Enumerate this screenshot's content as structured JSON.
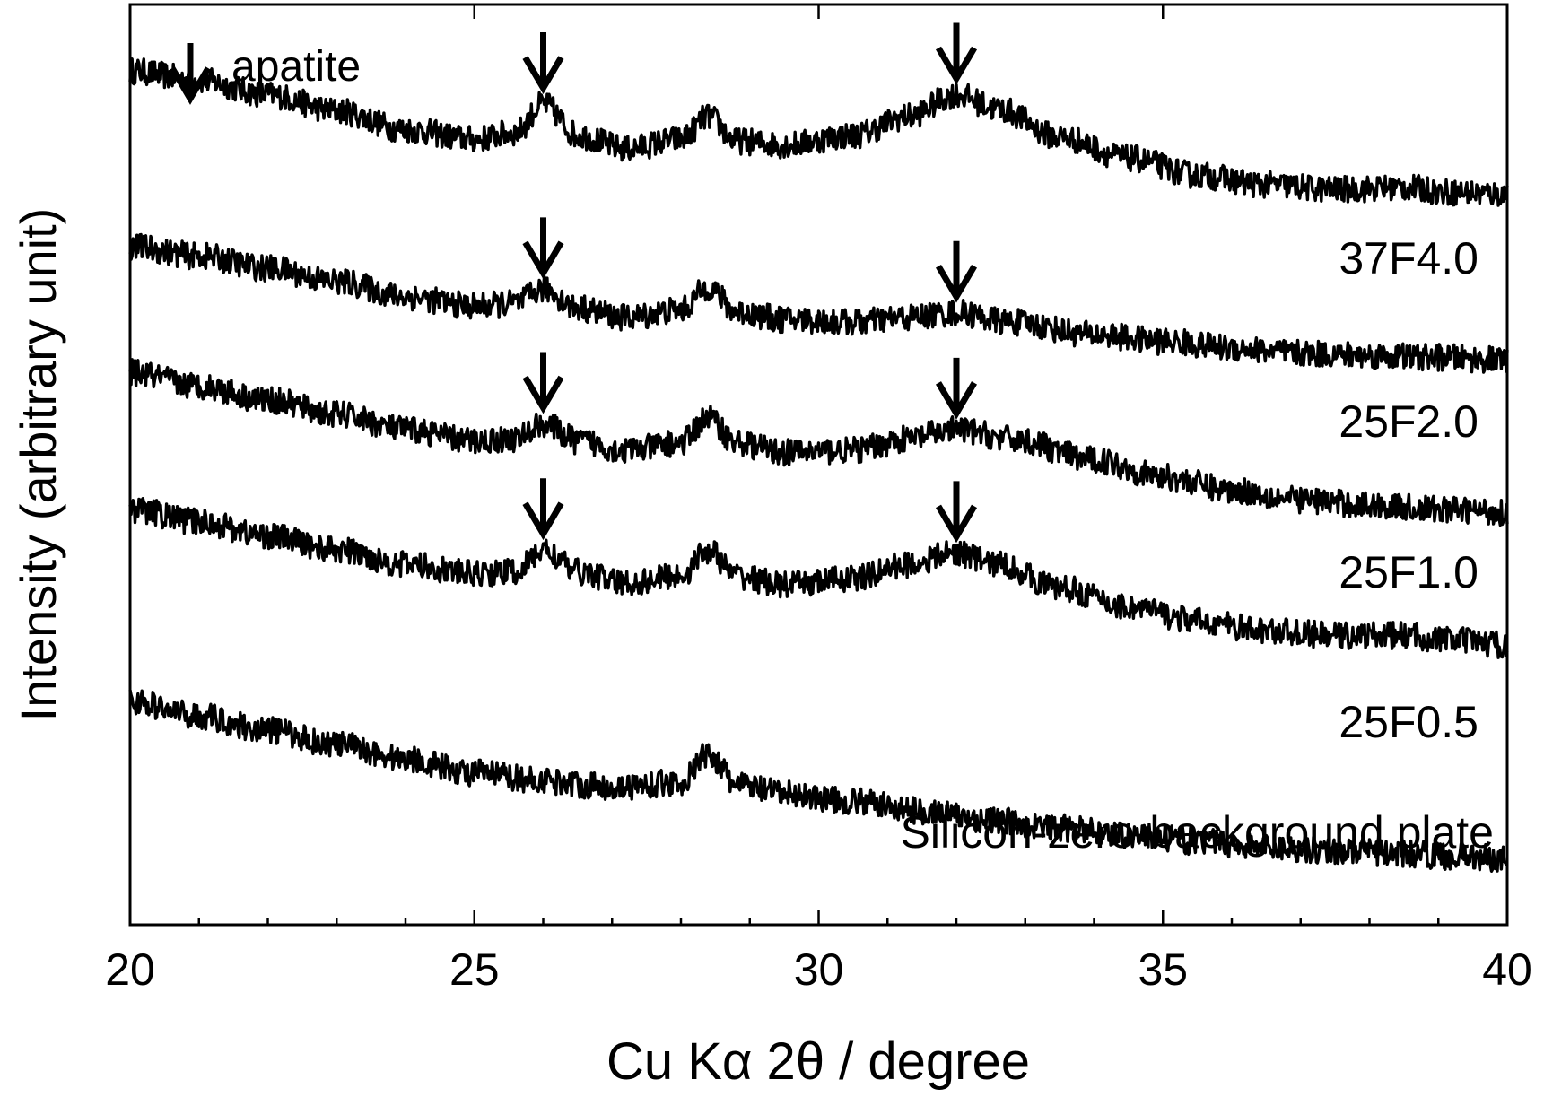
{
  "chart_data": {
    "type": "line",
    "xlabel": "Cu Kα 2θ / degree",
    "ylabel": "Intensity (arbitrary unit)",
    "xlim": [
      20,
      40
    ],
    "x_ticks": [
      20,
      25,
      30,
      35,
      40
    ],
    "y_ticks_shown": false,
    "grid": false,
    "legend": {
      "position": "top-left",
      "marker": "down-arrow",
      "label": "apatite"
    },
    "series": [
      {
        "name": "37F4.0",
        "points": [
          [
            20,
            8.4
          ],
          [
            21,
            8.3
          ],
          [
            22,
            8.15
          ],
          [
            23,
            7.98
          ],
          [
            24,
            7.78
          ],
          [
            25,
            7.68
          ],
          [
            25.6,
            7.75
          ],
          [
            26.0,
            8.05
          ],
          [
            26.5,
            7.72
          ],
          [
            27.2,
            7.58
          ],
          [
            28.0,
            7.68
          ],
          [
            28.4,
            7.92
          ],
          [
            28.8,
            7.66
          ],
          [
            29.5,
            7.62
          ],
          [
            30.5,
            7.72
          ],
          [
            31.3,
            7.92
          ],
          [
            32.0,
            8.15
          ],
          [
            32.6,
            8.0
          ],
          [
            33.5,
            7.7
          ],
          [
            34.5,
            7.48
          ],
          [
            35.5,
            7.3
          ],
          [
            36.5,
            7.2
          ],
          [
            37.5,
            7.15
          ],
          [
            38.5,
            7.17
          ],
          [
            39.2,
            7.12
          ],
          [
            40,
            7.1
          ]
        ]
      },
      {
        "name": "25F2.0",
        "points": [
          [
            20,
            6.55
          ],
          [
            21,
            6.45
          ],
          [
            22,
            6.32
          ],
          [
            23,
            6.18
          ],
          [
            24,
            6.02
          ],
          [
            25,
            5.92
          ],
          [
            25.6,
            5.95
          ],
          [
            26.0,
            6.1
          ],
          [
            26.5,
            5.9
          ],
          [
            27.2,
            5.8
          ],
          [
            28.0,
            5.88
          ],
          [
            28.4,
            6.12
          ],
          [
            28.8,
            5.86
          ],
          [
            29.5,
            5.78
          ],
          [
            30.5,
            5.75
          ],
          [
            31.3,
            5.8
          ],
          [
            32.0,
            5.85
          ],
          [
            32.8,
            5.75
          ],
          [
            34,
            5.62
          ],
          [
            35,
            5.55
          ],
          [
            36,
            5.48
          ],
          [
            37,
            5.42
          ],
          [
            38,
            5.4
          ],
          [
            39,
            5.38
          ],
          [
            40,
            5.35
          ]
        ]
      },
      {
        "name": "25F1.0",
        "points": [
          [
            20,
            5.22
          ],
          [
            21,
            5.08
          ],
          [
            22,
            4.93
          ],
          [
            23,
            4.78
          ],
          [
            24,
            4.62
          ],
          [
            25,
            4.5
          ],
          [
            25.6,
            4.52
          ],
          [
            26.0,
            4.68
          ],
          [
            26.5,
            4.5
          ],
          [
            27.2,
            4.4
          ],
          [
            28.0,
            4.48
          ],
          [
            28.4,
            4.75
          ],
          [
            28.8,
            4.48
          ],
          [
            29.5,
            4.38
          ],
          [
            30.5,
            4.4
          ],
          [
            31.3,
            4.52
          ],
          [
            32.0,
            4.62
          ],
          [
            32.8,
            4.52
          ],
          [
            34,
            4.3
          ],
          [
            35,
            4.12
          ],
          [
            36,
            3.98
          ],
          [
            37,
            3.88
          ],
          [
            38,
            3.82
          ],
          [
            39,
            3.78
          ],
          [
            40,
            3.75
          ]
        ]
      },
      {
        "name": "25F0.5",
        "points": [
          [
            20,
            3.78
          ],
          [
            21,
            3.65
          ],
          [
            22,
            3.5
          ],
          [
            23,
            3.35
          ],
          [
            24,
            3.2
          ],
          [
            25,
            3.1
          ],
          [
            25.6,
            3.12
          ],
          [
            26.0,
            3.35
          ],
          [
            26.5,
            3.12
          ],
          [
            27.2,
            3.0
          ],
          [
            28.0,
            3.08
          ],
          [
            28.4,
            3.35
          ],
          [
            28.8,
            3.08
          ],
          [
            29.5,
            2.98
          ],
          [
            30.5,
            3.05
          ],
          [
            31.3,
            3.2
          ],
          [
            32.0,
            3.32
          ],
          [
            32.6,
            3.2
          ],
          [
            33.5,
            2.95
          ],
          [
            34.5,
            2.75
          ],
          [
            35.5,
            2.6
          ],
          [
            36.5,
            2.5
          ],
          [
            37.5,
            2.45
          ],
          [
            38.5,
            2.45
          ],
          [
            39.2,
            2.4
          ],
          [
            40,
            2.35
          ]
        ]
      },
      {
        "name": "Silicon-zero-background plate",
        "points": [
          [
            20,
            1.75
          ],
          [
            21,
            1.6
          ],
          [
            22,
            1.45
          ],
          [
            23,
            1.3
          ],
          [
            24,
            1.15
          ],
          [
            25,
            1.0
          ],
          [
            26,
            0.92
          ],
          [
            27,
            0.85
          ],
          [
            28.0,
            0.9
          ],
          [
            28.4,
            1.2
          ],
          [
            28.8,
            0.88
          ],
          [
            29.5,
            0.78
          ],
          [
            30.5,
            0.7
          ],
          [
            31.5,
            0.6
          ],
          [
            32.5,
            0.5
          ],
          [
            33.5,
            0.42
          ],
          [
            34.5,
            0.35
          ],
          [
            35.5,
            0.28
          ],
          [
            36.5,
            0.22
          ],
          [
            37.5,
            0.18
          ],
          [
            38.5,
            0.15
          ],
          [
            39.2,
            0.12
          ],
          [
            40,
            0.1
          ]
        ]
      }
    ],
    "annotations": [
      {
        "marker": "down-arrow",
        "meaning": "apatite",
        "series": "37F4.0",
        "x": 26.0
      },
      {
        "marker": "down-arrow",
        "meaning": "apatite",
        "series": "37F4.0",
        "x": 32.0
      },
      {
        "marker": "down-arrow",
        "meaning": "apatite",
        "series": "25F2.0",
        "x": 26.0
      },
      {
        "marker": "down-arrow",
        "meaning": "apatite",
        "series": "25F2.0",
        "x": 32.0
      },
      {
        "marker": "down-arrow",
        "meaning": "apatite",
        "series": "25F1.0",
        "x": 26.0
      },
      {
        "marker": "down-arrow",
        "meaning": "apatite",
        "series": "25F1.0",
        "x": 32.0
      },
      {
        "marker": "down-arrow",
        "meaning": "apatite",
        "series": "25F0.5",
        "x": 26.0
      },
      {
        "marker": "down-arrow",
        "meaning": "apatite",
        "series": "25F0.5",
        "x": 32.0
      }
    ]
  }
}
